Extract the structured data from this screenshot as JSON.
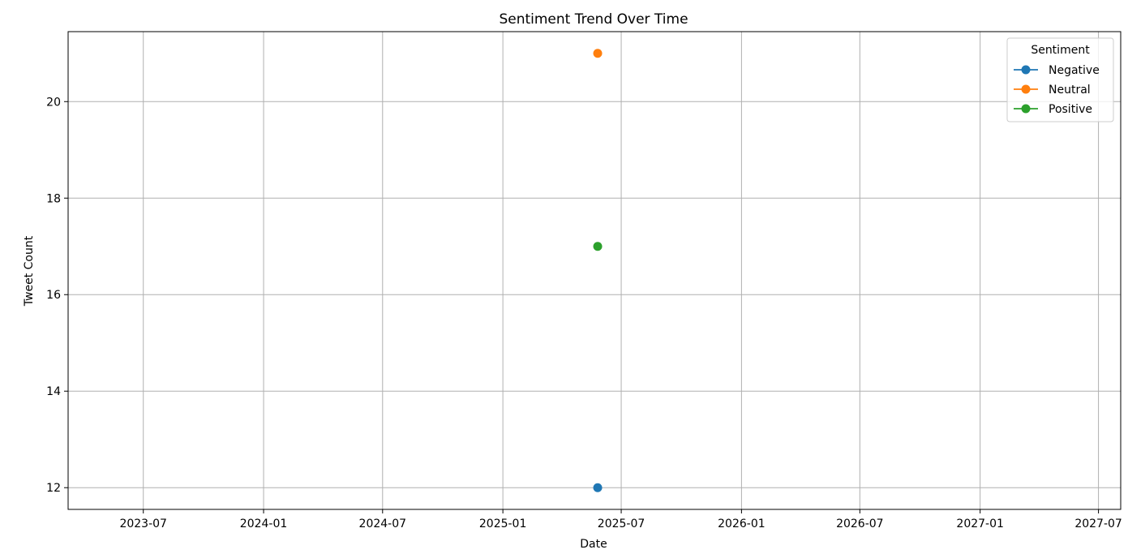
{
  "chart_data": {
    "type": "line",
    "title": "Sentiment Trend Over Time",
    "xlabel": "Date",
    "ylabel": "Tweet Count",
    "x_type": "date",
    "xlim": [
      "2023-03-08",
      "2027-08-04"
    ],
    "ylim": [
      11.55,
      21.45
    ],
    "x_ticks": [
      "2023-07",
      "2024-01",
      "2024-07",
      "2025-01",
      "2025-07",
      "2026-01",
      "2026-07",
      "2027-01",
      "2027-07"
    ],
    "y_ticks": [
      12,
      14,
      16,
      18,
      20
    ],
    "grid": true,
    "legend": {
      "title": "Sentiment",
      "placement": "top-right"
    },
    "series": [
      {
        "name": "Negative",
        "color": "#1f77b4",
        "x": [
          "2025-05-26"
        ],
        "y": [
          12
        ]
      },
      {
        "name": "Neutral",
        "color": "#ff7f0e",
        "x": [
          "2025-05-26"
        ],
        "y": [
          21
        ]
      },
      {
        "name": "Positive",
        "color": "#2ca02c",
        "x": [
          "2025-05-26"
        ],
        "y": [
          17
        ]
      }
    ]
  }
}
